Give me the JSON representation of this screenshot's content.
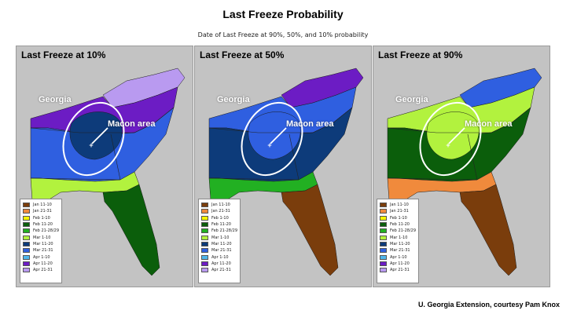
{
  "title": "Last Freeze Probability",
  "subtitle": "Date of Last Freeze at 90%, 50%, and 10% probability",
  "georgia_label": "Georgia",
  "macon_label": "Macon area",
  "credit": "U. Georgia Extension, courtesy Pam Knox",
  "legend": [
    {
      "label": "Jan 11-10",
      "color": "#7a3d0c"
    },
    {
      "label": "Jan 21-31",
      "color": "#f08a3c"
    },
    {
      "label": "Feb 1-10",
      "color": "#f5f500"
    },
    {
      "label": "Feb 11-20",
      "color": "#0b5e0b"
    },
    {
      "label": "Feb 21-28/29",
      "color": "#22b022"
    },
    {
      "label": "Mar 1-10",
      "color": "#b2f23e"
    },
    {
      "label": "Mar 11-20",
      "color": "#0d3b7a"
    },
    {
      "label": "Mar 21-31",
      "color": "#2f5fe0"
    },
    {
      "label": "Apr 1-10",
      "color": "#4fb6ec"
    },
    {
      "label": "Apr 11-20",
      "color": "#6c1cc4"
    },
    {
      "label": "Apr 21-31",
      "color": "#b99af0"
    }
  ],
  "panels": [
    {
      "title": "Last Freeze at 10%",
      "regions": {
        "north": "Apr 21-31",
        "piedmont": "Apr 11-20",
        "coastal_plain": "Mar 21-31",
        "ga_center": "Mar 11-20",
        "gulf": "Mar 1-10",
        "florida": "Feb 11-20"
      }
    },
    {
      "title": "Last Freeze at 50%",
      "regions": {
        "north": "Apr 11-20",
        "piedmont": "Mar 21-31",
        "coastal_plain": "Mar 11-20",
        "ga_center": "Mar 21-31",
        "gulf": "Feb 21-28/29",
        "florida": "Jan 11-10"
      }
    },
    {
      "title": "Last Freeze at 90%",
      "regions": {
        "north": "Mar 21-31",
        "piedmont": "Mar 1-10",
        "coastal_plain": "Feb 11-20",
        "ga_center": "Mar 1-10",
        "gulf": "Jan 21-31",
        "florida": "Jan 11-10"
      }
    }
  ]
}
